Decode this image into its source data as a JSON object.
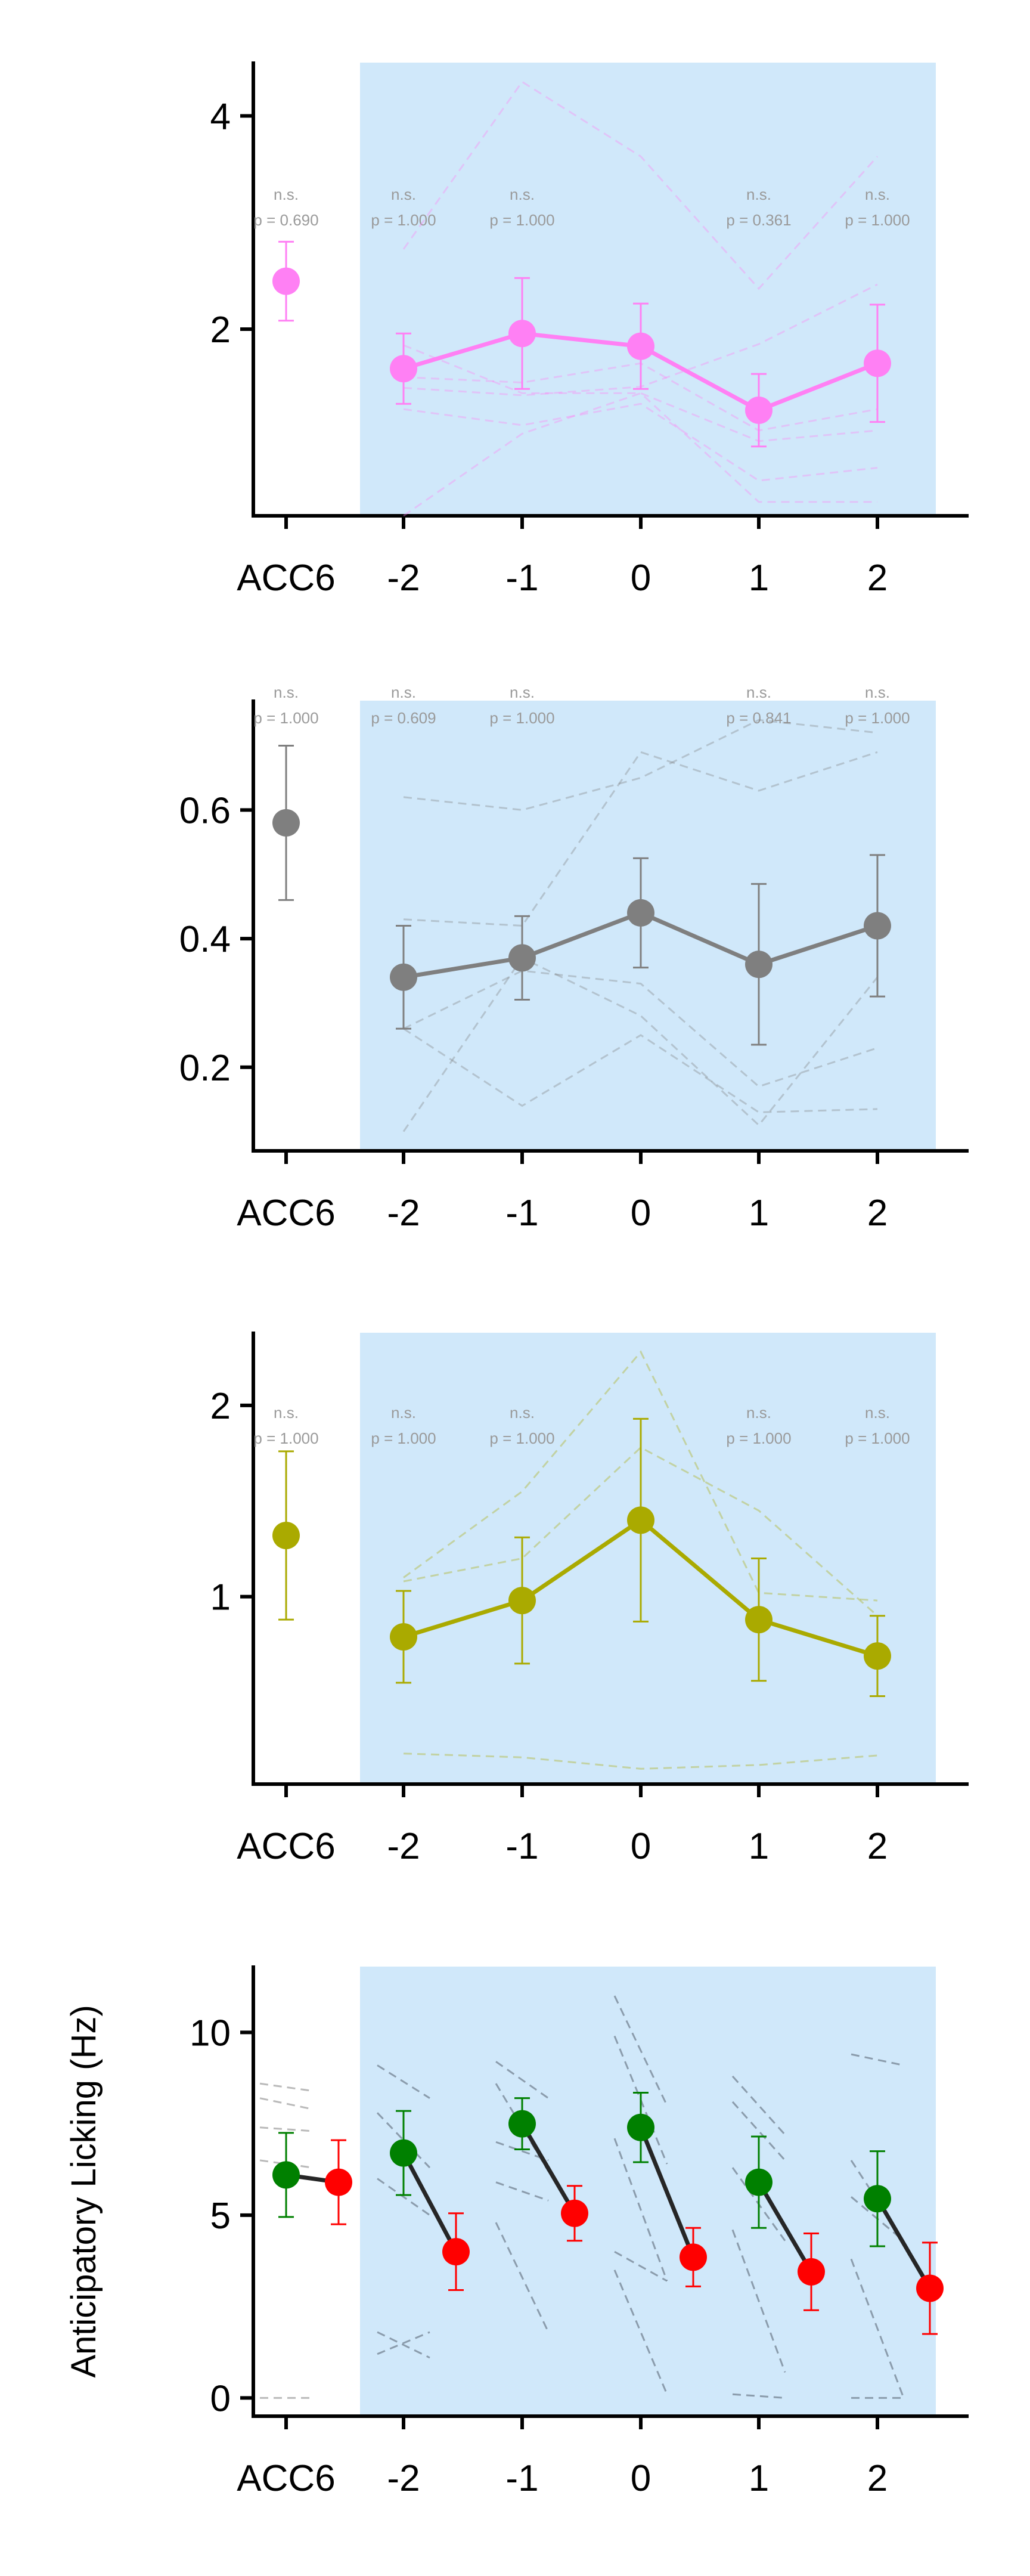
{
  "chart_data": [
    {
      "type": "line",
      "title": "",
      "ylabel": "",
      "ylim": [
        0.25,
        4.5
      ],
      "yticks": [
        2,
        4
      ],
      "x_labels": [
        "ACC6",
        "-2",
        "-1",
        "0",
        "1",
        "2"
      ],
      "highlight_span": [
        "-2",
        "2"
      ],
      "color": "#ff80f4",
      "mean": [
        2.45,
        1.63,
        1.96,
        1.84,
        1.24,
        1.68
      ],
      "error": [
        0.37,
        0.33,
        0.52,
        0.4,
        0.34,
        0.55
      ],
      "individuals": [
        [
          null,
          2.75,
          4.32,
          3.62,
          2.38,
          3.62
        ],
        [
          null,
          1.45,
          1.38,
          1.46,
          1.86,
          2.42
        ],
        [
          null,
          1.85,
          1.4,
          1.4,
          0.95,
          1.05
        ],
        [
          null,
          1.25,
          1.1,
          1.3,
          0.58,
          0.7
        ],
        [
          null,
          0.25,
          1.02,
          1.4,
          0.38,
          0.38
        ],
        [
          null,
          1.55,
          1.5,
          1.68,
          1.05,
          1.25
        ]
      ],
      "stats": [
        {
          "x": "ACC6",
          "sig": "n.s.",
          "p": "p = 0.690"
        },
        {
          "x": "-2",
          "sig": "n.s.",
          "p": "p = 1.000"
        },
        {
          "x": "-1",
          "sig": "n.s.",
          "p": "p = 1.000"
        },
        {
          "x": "1",
          "sig": "n.s.",
          "p": "p = 0.361"
        },
        {
          "x": "2",
          "sig": "n.s.",
          "p": "p = 1.000"
        }
      ]
    },
    {
      "type": "line",
      "title": "",
      "ylabel": "",
      "ylim": [
        0.07,
        0.77
      ],
      "yticks": [
        0.2,
        0.4,
        0.6
      ],
      "x_labels": [
        "ACC6",
        "-2",
        "-1",
        "0",
        "1",
        "2"
      ],
      "highlight_span": [
        "-2",
        "2"
      ],
      "color": "#7f7f7f",
      "mean": [
        0.58,
        0.34,
        0.37,
        0.44,
        0.36,
        0.42
      ],
      "error": [
        0.12,
        0.08,
        0.065,
        0.085,
        0.125,
        0.11
      ],
      "individuals": [
        [
          null,
          0.62,
          0.6,
          0.65,
          0.74,
          0.72
        ],
        [
          null,
          0.43,
          0.42,
          0.69,
          0.63,
          0.69
        ],
        [
          null,
          0.26,
          0.35,
          0.33,
          0.17,
          0.23
        ],
        [
          null,
          0.1,
          0.37,
          0.28,
          0.11,
          0.34
        ],
        [
          null,
          0.26,
          0.14,
          0.25,
          0.13,
          0.135
        ]
      ],
      "stats": [
        {
          "x": "ACC6",
          "sig": "n.s.",
          "p": "p = 1.000"
        },
        {
          "x": "-2",
          "sig": "n.s.",
          "p": "p = 0.609"
        },
        {
          "x": "-1",
          "sig": "n.s.",
          "p": "p = 1.000"
        },
        {
          "x": "1",
          "sig": "n.s.",
          "p": "p = 0.841"
        },
        {
          "x": "2",
          "sig": "n.s.",
          "p": "p = 1.000"
        }
      ]
    },
    {
      "type": "line",
      "title": "",
      "ylabel": "",
      "ylim": [
        0.02,
        2.38
      ],
      "yticks": [
        1,
        2
      ],
      "x_labels": [
        "ACC6",
        "-2",
        "-1",
        "0",
        "1",
        "2"
      ],
      "highlight_span": [
        "-2",
        "2"
      ],
      "color": "#aaaa00",
      "mean": [
        1.32,
        0.79,
        0.98,
        1.4,
        0.88,
        0.69
      ],
      "error": [
        0.44,
        0.24,
        0.33,
        0.53,
        0.32,
        0.21
      ],
      "individuals": [
        [
          null,
          1.1,
          1.55,
          2.28,
          1.02,
          0.98
        ],
        [
          null,
          1.08,
          1.2,
          1.78,
          1.45,
          0.9
        ],
        [
          null,
          0.18,
          0.16,
          0.1,
          0.12,
          0.17
        ]
      ],
      "stats": [
        {
          "x": "ACC6",
          "sig": "n.s.",
          "p": "p = 1.000"
        },
        {
          "x": "-2",
          "sig": "n.s.",
          "p": "p = 1.000"
        },
        {
          "x": "-1",
          "sig": "n.s.",
          "p": "p = 1.000"
        },
        {
          "x": "1",
          "sig": "n.s.",
          "p": "p = 1.000"
        },
        {
          "x": "2",
          "sig": "n.s.",
          "p": "p = 1.000"
        }
      ]
    },
    {
      "type": "line",
      "title": "",
      "ylabel": "Anticipatory Licking (Hz)",
      "ylim": [
        -0.5,
        11.8
      ],
      "yticks": [
        0,
        5,
        10
      ],
      "x_labels": [
        "ACC6",
        "-2",
        "-1",
        "0",
        "1",
        "2"
      ],
      "highlight_span": [
        "-2",
        "2"
      ],
      "pair_colors": [
        "#008000",
        "#ff0000"
      ],
      "connector_color": "#262626",
      "pairs": [
        {
          "x": "ACC6",
          "a": 6.1,
          "a_err": 1.15,
          "b": 5.9,
          "b_err": 1.15
        },
        {
          "x": "-2",
          "a": 6.7,
          "a_err": 1.15,
          "b": 4.0,
          "b_err": 1.05
        },
        {
          "x": "-1",
          "a": 7.5,
          "a_err": 0.7,
          "b": 5.05,
          "b_err": 0.75
        },
        {
          "x": "0",
          "a": 7.4,
          "a_err": 0.95,
          "b": 3.85,
          "b_err": 0.8
        },
        {
          "x": "1",
          "a": 5.9,
          "a_err": 1.25,
          "b": 3.45,
          "b_err": 1.05
        },
        {
          "x": "2",
          "a": 5.45,
          "a_err": 1.3,
          "b": 3.0,
          "b_err": 1.25
        }
      ],
      "individual_pairs": [
        {
          "x": "ACC6",
          "lines": [
            [
              8.6,
              8.4
            ],
            [
              8.2,
              7.9
            ],
            [
              7.4,
              7.3
            ],
            [
              6.5,
              6.3
            ],
            [
              0.0,
              0.0
            ]
          ]
        },
        {
          "x": "-2",
          "lines": [
            [
              9.1,
              8.2
            ],
            [
              7.8,
              6.3
            ],
            [
              6.0,
              5.0
            ],
            [
              1.2,
              1.8
            ],
            [
              1.8,
              1.1
            ]
          ]
        },
        {
          "x": "-1",
          "lines": [
            [
              9.2,
              8.2
            ],
            [
              8.6,
              6.2
            ],
            [
              7.0,
              6.5
            ],
            [
              5.9,
              5.4
            ],
            [
              4.8,
              1.8
            ]
          ]
        },
        {
          "x": "0",
          "lines": [
            [
              11.0,
              8.0
            ],
            [
              9.9,
              6.4
            ],
            [
              7.1,
              3.2
            ],
            [
              4.0,
              3.2
            ],
            [
              3.5,
              0.1
            ]
          ]
        },
        {
          "x": "1",
          "lines": [
            [
              8.8,
              7.2
            ],
            [
              8.1,
              6.5
            ],
            [
              6.3,
              4.3
            ],
            [
              4.6,
              0.7
            ],
            [
              0.1,
              0.0
            ]
          ]
        },
        {
          "x": "2",
          "lines": [
            [
              9.4,
              9.1
            ],
            [
              6.5,
              4.3
            ],
            [
              5.5,
              4.3
            ],
            [
              3.8,
              0.0
            ],
            [
              0.0,
              0.0
            ]
          ]
        }
      ]
    }
  ]
}
